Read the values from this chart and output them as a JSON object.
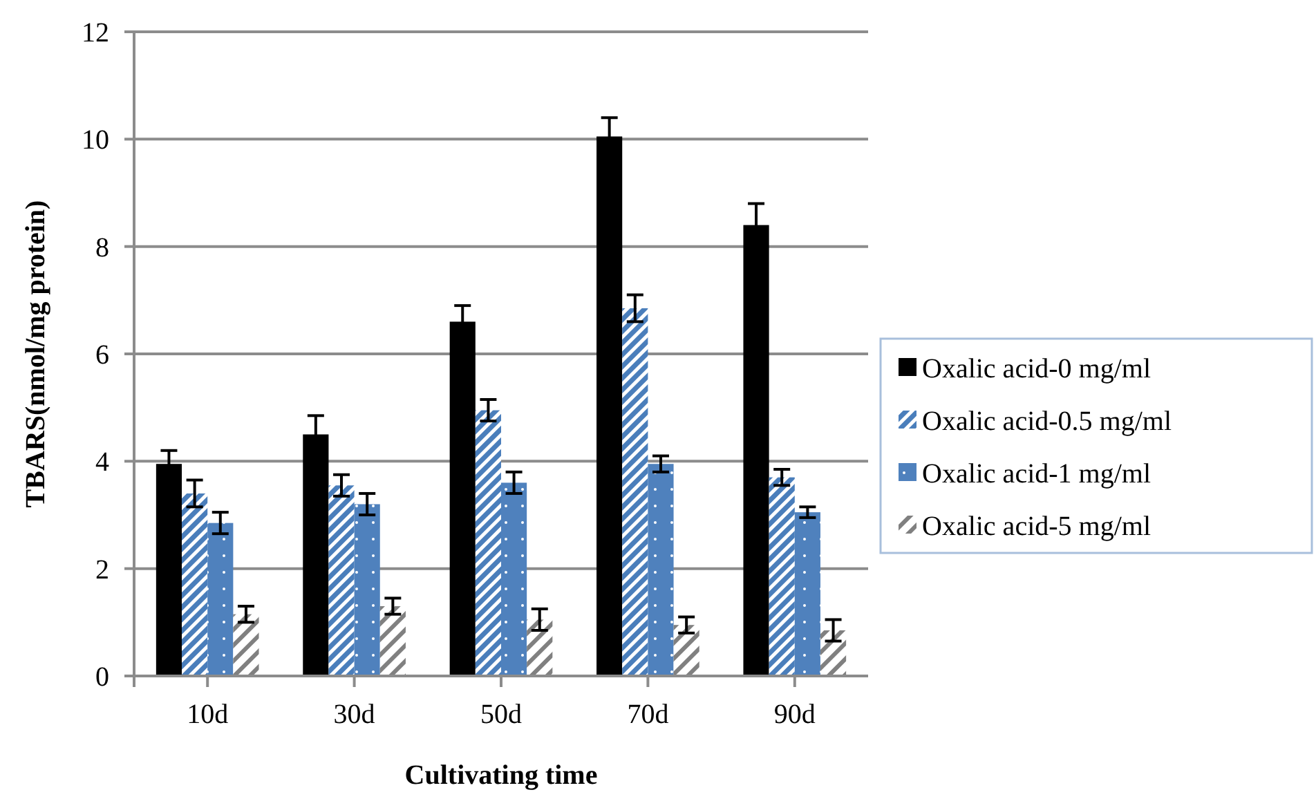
{
  "chart_data": {
    "type": "bar",
    "xlabel": "Cultivating time",
    "ylabel": "TBARS(nmol/mg protein)",
    "categories": [
      "10d",
      "30d",
      "50d",
      "70d",
      "90d"
    ],
    "series": [
      {
        "name": "Oxalic acid-0 mg/ml",
        "color": "#000000",
        "values": [
          3.95,
          4.5,
          6.6,
          10.05,
          8.4
        ],
        "errors": [
          0.25,
          0.35,
          0.3,
          0.35,
          0.4
        ]
      },
      {
        "name": "Oxalic acid-0.5 mg/ml",
        "color": "#4a7ebb",
        "values": [
          3.4,
          3.55,
          4.95,
          6.85,
          3.7
        ],
        "errors": [
          0.25,
          0.2,
          0.2,
          0.25,
          0.15
        ]
      },
      {
        "name": "Oxalic acid-1 mg/ml",
        "color": "#4f81bd",
        "values": [
          2.85,
          3.2,
          3.6,
          3.95,
          3.05
        ],
        "errors": [
          0.2,
          0.2,
          0.2,
          0.15,
          0.1
        ]
      },
      {
        "name": "Oxalic acid-5 mg/ml",
        "color": "#808080",
        "values": [
          1.15,
          1.3,
          1.05,
          0.95,
          0.85
        ],
        "errors": [
          0.15,
          0.15,
          0.2,
          0.15,
          0.2
        ]
      }
    ],
    "ylim": [
      0,
      12
    ],
    "yticks": [
      0,
      2,
      4,
      6,
      8,
      10,
      12
    ],
    "grid": "y",
    "legend": "right"
  }
}
